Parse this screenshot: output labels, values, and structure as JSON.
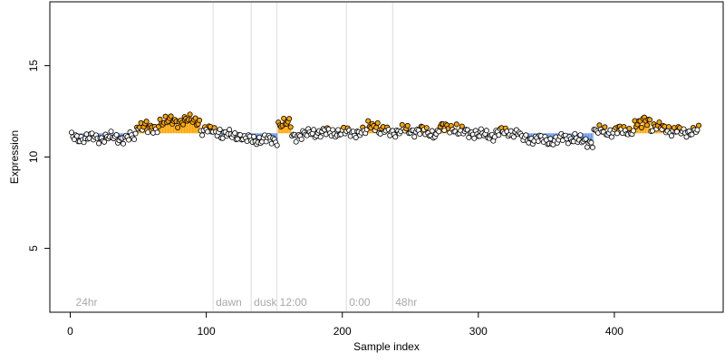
{
  "chart_data": {
    "type": "scatter",
    "title": "",
    "xlabel": "Sample index",
    "ylabel": "Expression",
    "xlim": [
      -15,
      480
    ],
    "ylim": [
      1.5,
      18.5
    ],
    "x_ticks": [
      0,
      100,
      200,
      300,
      400
    ],
    "y_ticks": [
      5,
      10,
      15
    ],
    "grid": false,
    "baseline": 11.3,
    "colors": {
      "above_baseline": "#ffa500",
      "below_baseline": "#6495ed",
      "point_fill": "#ffffff",
      "point_above": "#ffa500",
      "point_edge": "#000000",
      "period_line": "#dcdcdc",
      "period_label": "#a9a9a9"
    },
    "period_markers": [
      {
        "label": "24hr",
        "x": 2
      },
      {
        "label": "dawn",
        "x": 105
      },
      {
        "label": "dusk",
        "x": 133
      },
      {
        "label": "12:00",
        "x": 152
      },
      {
        "label": "0:00",
        "x": 203
      },
      {
        "label": "48hr",
        "x": 237
      }
    ],
    "segments": [
      {
        "x_start": 1,
        "x_end": 48,
        "value": 11.05
      },
      {
        "x_start": 49,
        "x_end": 56,
        "value": 11.75
      },
      {
        "x_start": 57,
        "x_end": 64,
        "value": 11.5
      },
      {
        "x_start": 65,
        "x_end": 80,
        "value": 11.95
      },
      {
        "x_start": 81,
        "x_end": 95,
        "value": 12.0
      },
      {
        "x_start": 96,
        "x_end": 110,
        "value": 11.45
      },
      {
        "x_start": 111,
        "x_end": 126,
        "value": 11.2
      },
      {
        "x_start": 127,
        "x_end": 152,
        "value": 10.95
      },
      {
        "x_start": 153,
        "x_end": 162,
        "value": 11.8
      },
      {
        "x_start": 163,
        "x_end": 175,
        "value": 11.2
      },
      {
        "x_start": 176,
        "x_end": 200,
        "value": 11.35
      },
      {
        "x_start": 201,
        "x_end": 218,
        "value": 11.35
      },
      {
        "x_start": 219,
        "x_end": 226,
        "value": 11.75
      },
      {
        "x_start": 227,
        "x_end": 242,
        "value": 11.4
      },
      {
        "x_start": 243,
        "x_end": 260,
        "value": 11.45
      },
      {
        "x_start": 261,
        "x_end": 270,
        "value": 11.3
      },
      {
        "x_start": 271,
        "x_end": 284,
        "value": 11.6
      },
      {
        "x_start": 285,
        "x_end": 298,
        "value": 11.35
      },
      {
        "x_start": 299,
        "x_end": 312,
        "value": 11.2
      },
      {
        "x_start": 313,
        "x_end": 330,
        "value": 11.35
      },
      {
        "x_start": 331,
        "x_end": 345,
        "value": 11.0
      },
      {
        "x_start": 346,
        "x_end": 360,
        "value": 10.9
      },
      {
        "x_start": 361,
        "x_end": 372,
        "value": 11.05
      },
      {
        "x_start": 373,
        "x_end": 384,
        "value": 10.85
      },
      {
        "x_start": 385,
        "x_end": 400,
        "value": 11.4
      },
      {
        "x_start": 401,
        "x_end": 414,
        "value": 11.45
      },
      {
        "x_start": 415,
        "x_end": 420,
        "value": 11.75
      },
      {
        "x_start": 421,
        "x_end": 426,
        "value": 12.05
      },
      {
        "x_start": 427,
        "x_end": 440,
        "value": 11.6
      },
      {
        "x_start": 441,
        "x_end": 462,
        "value": 11.4
      }
    ]
  }
}
